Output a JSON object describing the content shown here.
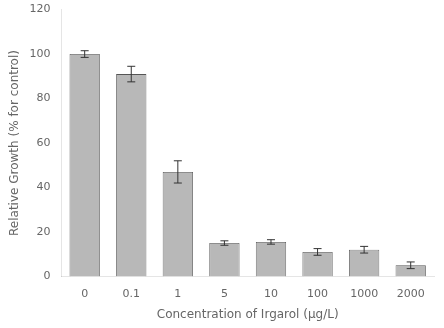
{
  "chart_data": {
    "type": "bar",
    "categories": [
      "0",
      "0.1",
      "1",
      "5",
      "10",
      "100",
      "1000",
      "2000"
    ],
    "values": [
      100,
      91,
      47,
      15,
      15.5,
      11,
      12,
      5
    ],
    "errors": [
      1.5,
      3.5,
      5,
      1.0,
      1.0,
      1.5,
      1.5,
      1.5
    ],
    "color": "#b8b8b8",
    "xlabel": "Concentration of Irgarol (μg/L)",
    "ylabel": "Relative Growth (% for control)",
    "ylim": [
      0,
      120
    ],
    "yticks": [
      0,
      20,
      40,
      60,
      80,
      100,
      120
    ],
    "grid": false
  }
}
